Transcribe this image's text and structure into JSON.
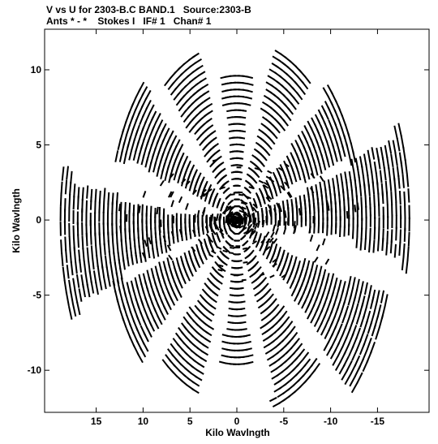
{
  "chart_data": {
    "type": "scatter",
    "title": "V vs U for 2303-B.C BAND.1   Source:2303-B",
    "subtitle": "Ants * - *    Stokes I   IF# 1   Chan# 1",
    "xlabel": "Kilo Wavlngth",
    "ylabel": "Kilo Wavlngth",
    "xlim": [
      20.5,
      -20.5
    ],
    "ylim": [
      -12.8,
      12.7
    ],
    "x_ticks": [
      15,
      10,
      5,
      0,
      -5,
      -10,
      -15
    ],
    "x_tick_labels": [
      "15",
      "10",
      "5",
      "0",
      "-5",
      "-10",
      "-15"
    ],
    "y_ticks": [
      10,
      5,
      0,
      -5,
      -10
    ],
    "y_tick_labels": [
      "10",
      "5",
      "0",
      "-5",
      "-10"
    ],
    "grid": false,
    "legend": "none",
    "marker_color": "#000000",
    "series_note_spokes": [
      {
        "angle_deg": 30,
        "max_radius": 13.5
      },
      {
        "angle_deg": 60,
        "max_radius": 11.8
      },
      {
        "angle_deg": 90,
        "max_radius": 9.6
      },
      {
        "angle_deg": 120,
        "max_radius": 12.0
      },
      {
        "angle_deg": 150,
        "max_radius": 13.2
      },
      {
        "angle_deg": 175,
        "max_radius": 18.4
      },
      {
        "angle_deg": 210,
        "max_radius": 16.8
      },
      {
        "angle_deg": 240,
        "max_radius": 13.0
      },
      {
        "angle_deg": 270,
        "max_radius": 9.6
      },
      {
        "angle_deg": 300,
        "max_radius": 12.2
      },
      {
        "angle_deg": 330,
        "max_radius": 13.8
      },
      {
        "angle_deg": 355,
        "max_radius": 18.8
      }
    ]
  }
}
